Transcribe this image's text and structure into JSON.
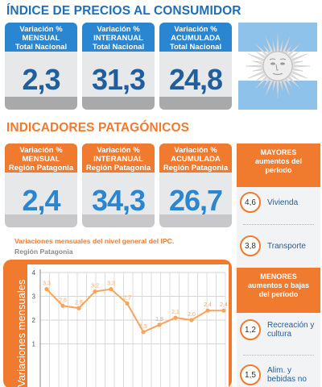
{
  "section1": {
    "title": "ÍNDICE DE PRECIOS AL CONSUMIDOR",
    "cards": [
      {
        "l1": "Variación %",
        "l2": "MENSUAL",
        "l3": "Total Nacional",
        "value": "2,3"
      },
      {
        "l1": "Variación %",
        "l2": "INTERANUAL",
        "l3": "Total Nacional",
        "value": "31,3"
      },
      {
        "l1": "Variación %",
        "l2": "ACUMULADA",
        "l3": "Total Nacional",
        "value": "24,8"
      }
    ]
  },
  "section2": {
    "title": "INDICADORES PATAGÓNICOS",
    "cards": [
      {
        "l1": "Variación %",
        "l2": "MENSUAL",
        "l3": "Región Patagonia",
        "value": "2,4"
      },
      {
        "l1": "Variación %",
        "l2": "INTERANUAL",
        "l3": "Región Patagonia",
        "value": "34,3"
      },
      {
        "l1": "Variación %",
        "l2": "ACUMULADA",
        "l3": "Región Patagonia",
        "value": "26,7"
      }
    ]
  },
  "panel": {
    "mayores": {
      "l1": "MAYORES",
      "l2": "aumentos del",
      "l3": "período"
    },
    "mayores_items": [
      {
        "value": "4,6",
        "label1": "Vivienda",
        "label2": ""
      },
      {
        "value": "3,8",
        "label1": "Transporte",
        "label2": ""
      }
    ],
    "menores": {
      "l1": "MENORES",
      "l2": "aumentos o bajas",
      "l3": "del período"
    },
    "menores_items": [
      {
        "value": "1,2",
        "label1": "Recreación y",
        "label2": "cultura"
      },
      {
        "value": "1,5",
        "label1": "Alim. y",
        "label2": "bebidas no"
      }
    ]
  },
  "chart_data": {
    "type": "line",
    "title": "Variaciones mensuales del nivel general del IPC.",
    "subtitle": "Región Patagonia",
    "ylabel": "Variaciones mensuales",
    "xlabel": "",
    "ylim": [
      0,
      4
    ],
    "yticks": [
      1,
      2,
      3,
      4
    ],
    "grid": true,
    "line_color": "#f5a55c",
    "series": [
      {
        "values": [
          3.3,
          2.6,
          2.5,
          3.2,
          3.3,
          2.7,
          1.5,
          1.8,
          2.1,
          2.0,
          2.4,
          2.4
        ],
        "labels": [
          "3,3",
          "2,6",
          "2,5",
          "3,2",
          "3,3",
          "2,7",
          "1,5",
          "1,8",
          "2,1",
          "2,0",
          "2,4",
          "2,4"
        ]
      }
    ]
  },
  "colors": {
    "blue": "#2a86d1",
    "orange": "#f07a2e"
  }
}
